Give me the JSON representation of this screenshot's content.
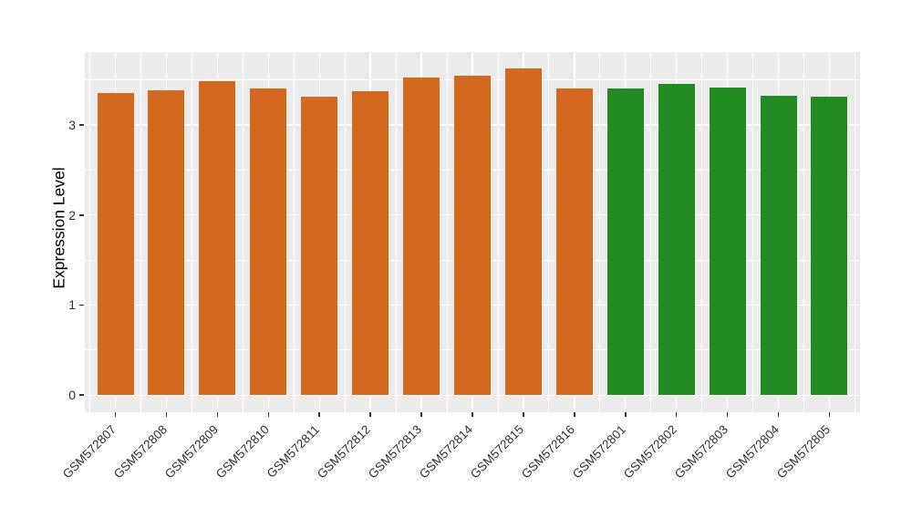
{
  "figure": {
    "background": "#FFFFFF",
    "panel_background": "#EBEBEB",
    "grid_color": "#FFFFFF",
    "tick_mark_color": "#333333",
    "tick_label_color": "#303030",
    "axis_title_color": "#000000",
    "orange_bar_color": "#D2691E",
    "green_bar_color": "#228B22"
  },
  "chart_data": {
    "type": "bar",
    "title": "",
    "xlabel": "",
    "ylabel": "Expression Level",
    "ylim": [
      -0.19,
      3.81
    ],
    "yticks": [
      0,
      1,
      2,
      3
    ],
    "grid": "on",
    "legend_position": "none",
    "x_label_rotation_deg": 45,
    "bars": [
      {
        "label": "GSM572807",
        "value": 3.35,
        "color": "#D2691E"
      },
      {
        "label": "GSM572808",
        "value": 3.38,
        "color": "#D2691E"
      },
      {
        "label": "GSM572809",
        "value": 3.49,
        "color": "#D2691E"
      },
      {
        "label": "GSM572810",
        "value": 3.4,
        "color": "#D2691E"
      },
      {
        "label": "GSM572811",
        "value": 3.31,
        "color": "#D2691E"
      },
      {
        "label": "GSM572812",
        "value": 3.37,
        "color": "#D2691E"
      },
      {
        "label": "GSM572813",
        "value": 3.53,
        "color": "#D2691E"
      },
      {
        "label": "GSM572814",
        "value": 3.55,
        "color": "#D2691E"
      },
      {
        "label": "GSM572815",
        "value": 3.63,
        "color": "#D2691E"
      },
      {
        "label": "GSM572816",
        "value": 3.41,
        "color": "#D2691E"
      },
      {
        "label": "GSM572801",
        "value": 3.4,
        "color": "#228B22"
      },
      {
        "label": "GSM572802",
        "value": 3.46,
        "color": "#228B22"
      },
      {
        "label": "GSM572803",
        "value": 3.42,
        "color": "#228B22"
      },
      {
        "label": "GSM572804",
        "value": 3.32,
        "color": "#228B22"
      },
      {
        "label": "GSM572805",
        "value": 3.31,
        "color": "#228B22"
      }
    ]
  }
}
